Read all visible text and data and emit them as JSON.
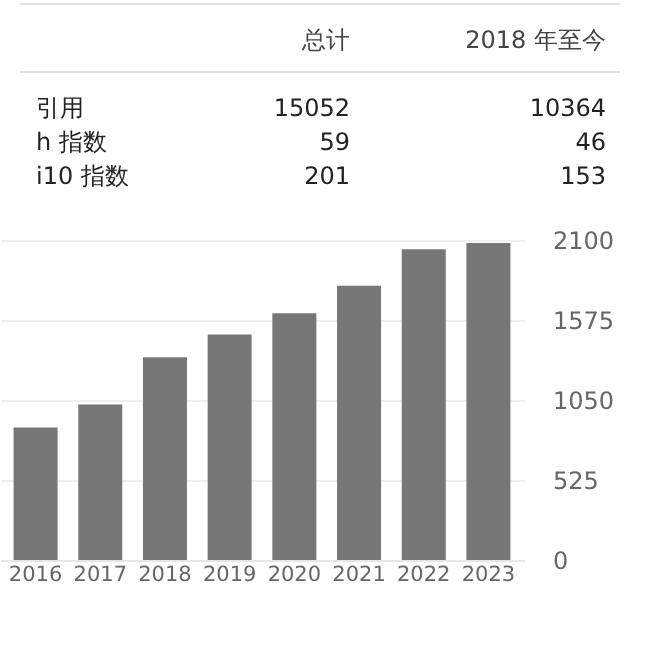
{
  "chart_data": [
    {
      "type": "other",
      "categories": [
        "引用",
        "h 指数",
        "i10 指数"
      ],
      "data_labels": true,
      "series": [
        {
          "name": "总计",
          "values": [
            15052,
            59,
            201
          ]
        },
        {
          "name": "2018 年至今",
          "values": [
            10364,
            46,
            153
          ]
        }
      ]
    },
    {
      "type": "bar",
      "categories": [
        "2016",
        "2017",
        "2018",
        "2019",
        "2020",
        "2021",
        "2022",
        "2023"
      ],
      "values": [
        870,
        1020,
        1330,
        1480,
        1620,
        1800,
        2040,
        2080
      ],
      "color": "#777777",
      "ylim": [
        0,
        2100
      ],
      "yticks": [
        0,
        525,
        1050,
        1575,
        2100
      ],
      "grid": "y"
    }
  ]
}
